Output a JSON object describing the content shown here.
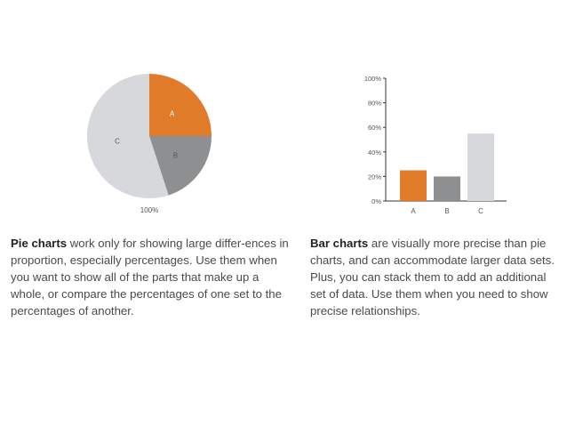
{
  "chart_data": [
    {
      "type": "pie",
      "categories": [
        "A",
        "B",
        "C"
      ],
      "values": [
        25,
        20,
        55
      ],
      "colors": [
        "#e07b2a",
        "#8e8f91",
        "#d6d8dc"
      ],
      "total_label": "100%"
    },
    {
      "type": "bar",
      "categories": [
        "A",
        "B",
        "C"
      ],
      "values": [
        25,
        20,
        55
      ],
      "colors": [
        "#e07b2a",
        "#8e8f91",
        "#d6d8dc"
      ],
      "ylim": [
        0,
        100
      ],
      "yticks": [
        "0%",
        "20%",
        "40%",
        "60%",
        "80%",
        "100%"
      ],
      "ytick_values": [
        0,
        20,
        40,
        60,
        80,
        100
      ]
    }
  ],
  "captions": {
    "pie": {
      "bold": "Pie charts",
      "text": " work only for showing large differ-ences in proportion, especially percentages. Use them when you want to show all of the parts that make up a whole, or compare the percentages of one set to the percentages of another."
    },
    "bar": {
      "bold": "Bar charts",
      "text": " are visually more precise than pie charts, and can accommodate larger data sets. Plus, you can stack them to add an additional set of data. Use them when you need to show precise relationships."
    }
  }
}
